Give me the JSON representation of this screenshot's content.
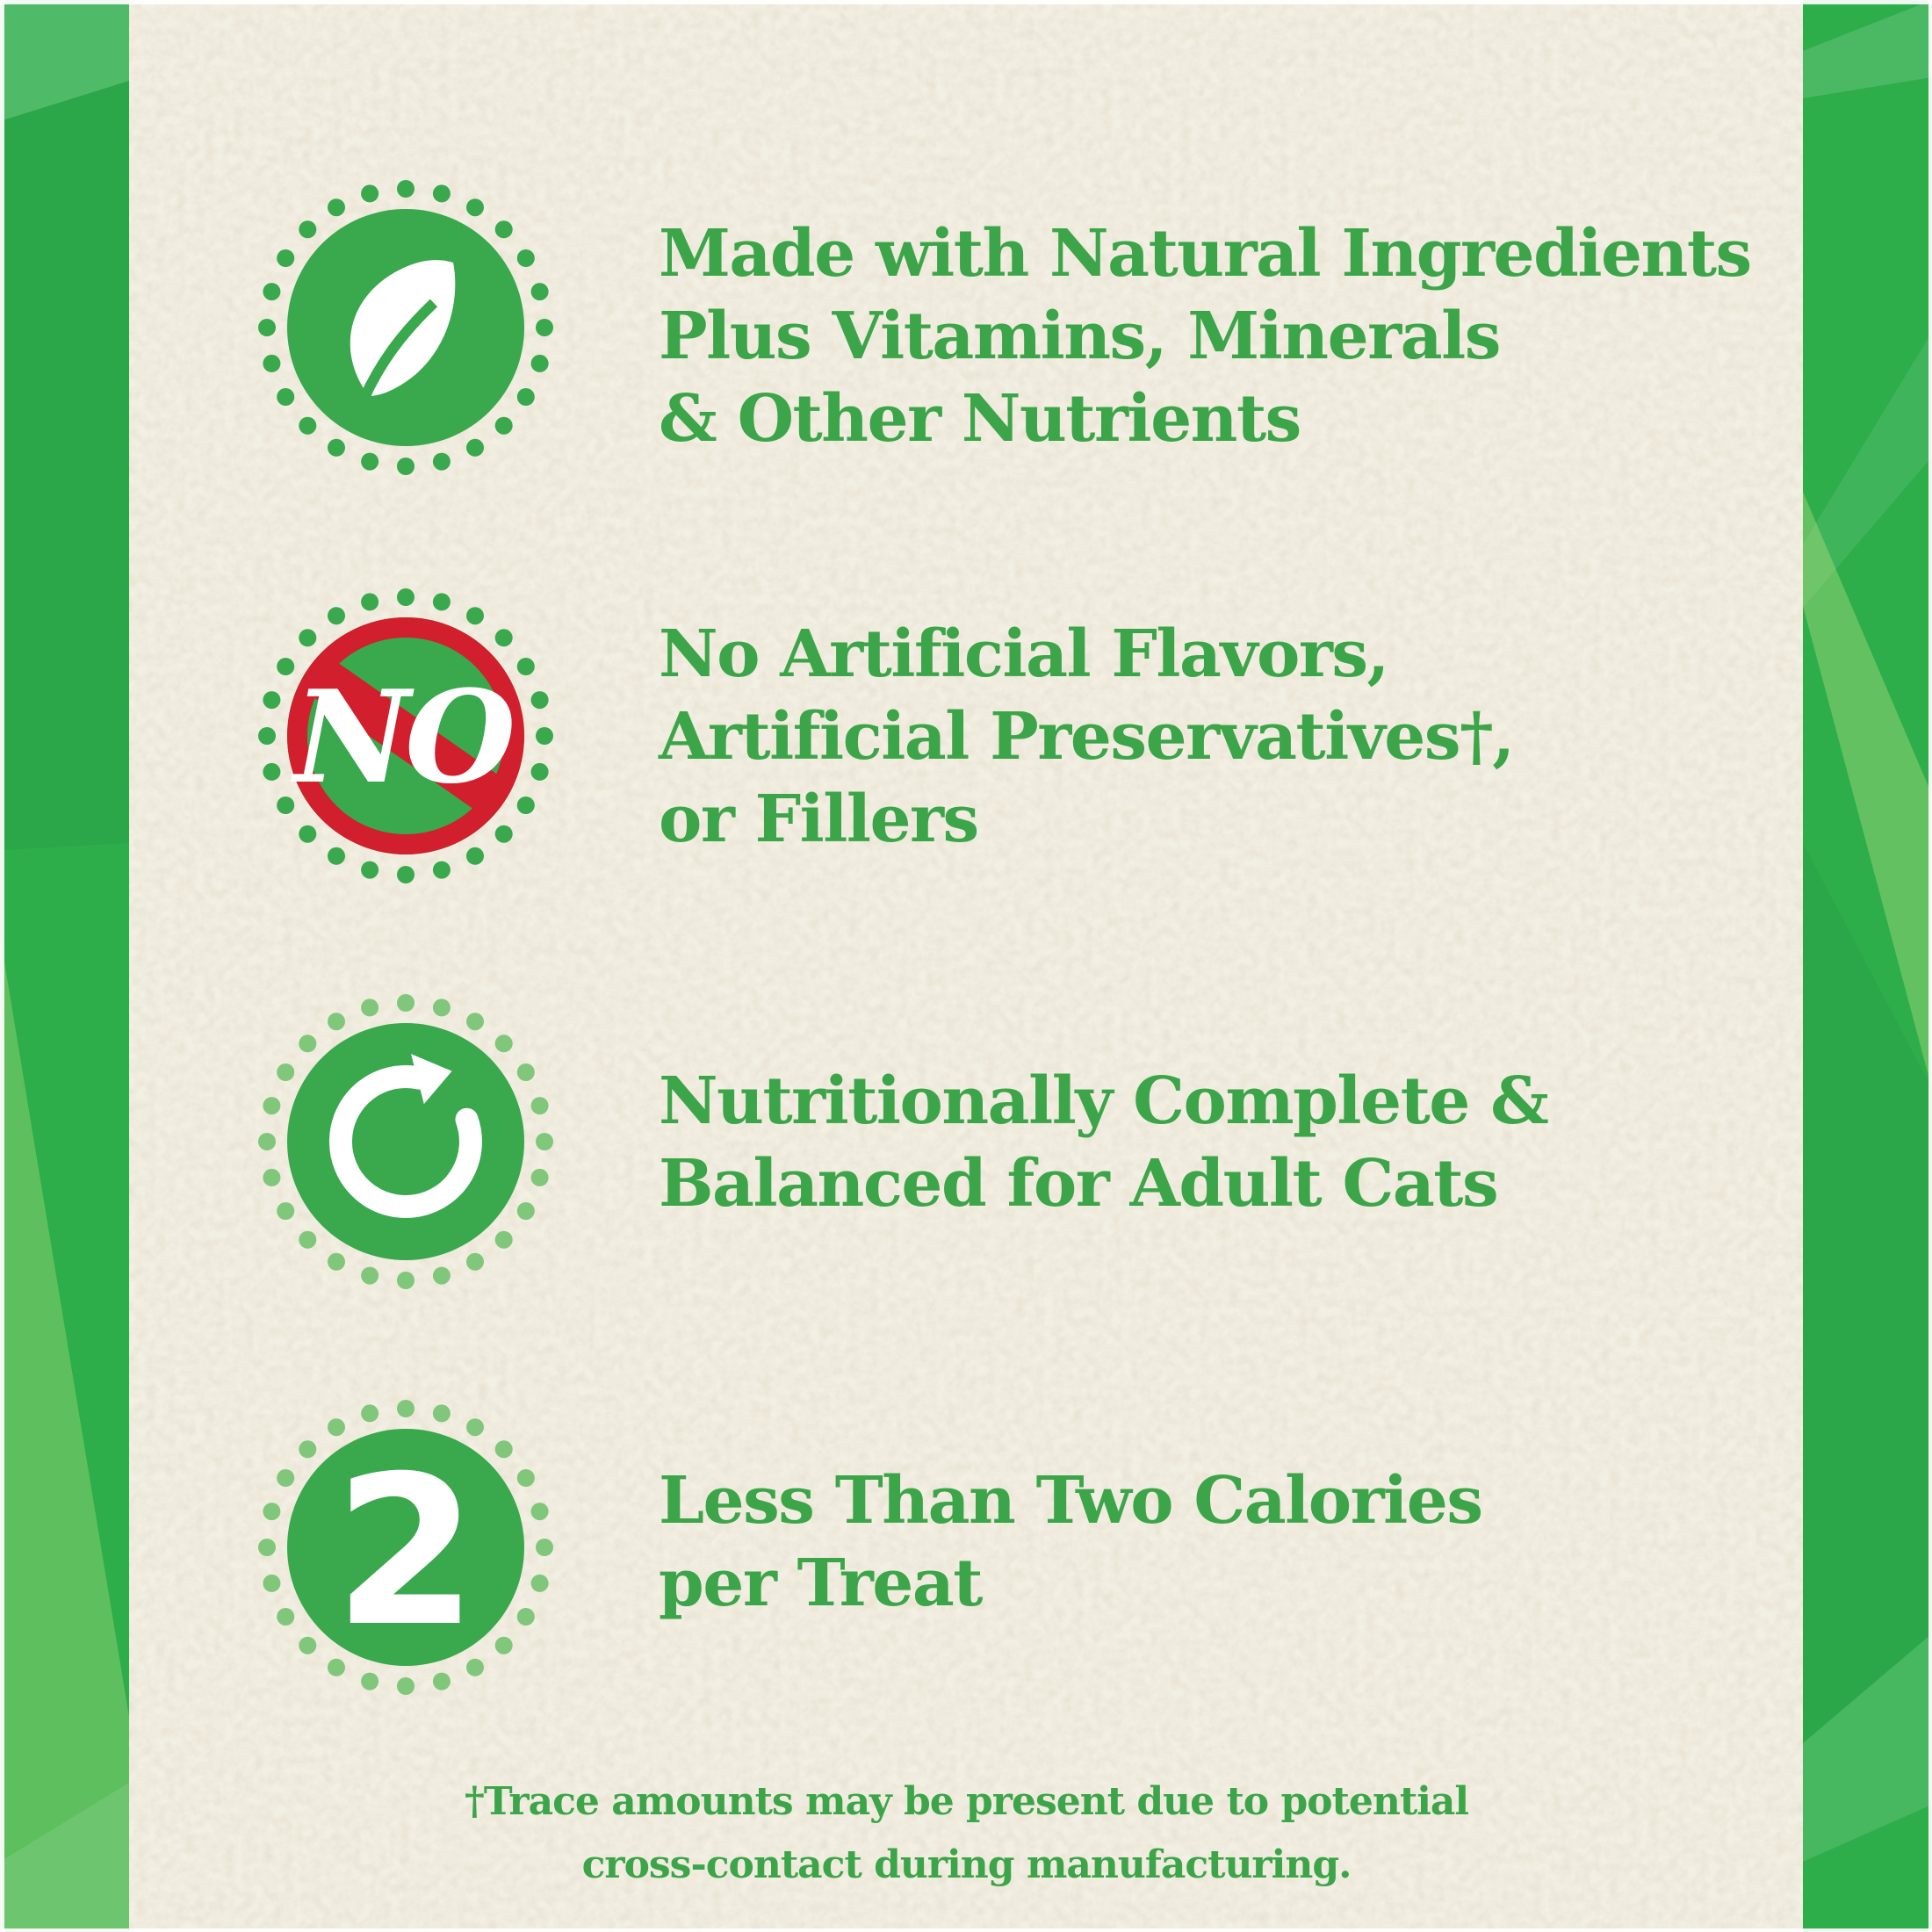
{
  "theme": {
    "paper_color": "#f2efe3",
    "strip_green": "#2ead4b",
    "text_green": "#3da549",
    "icon_green": "#3aa84d",
    "dot_light_green": "#80c77b",
    "ban_red": "#d11f2d",
    "glyph_white": "#ffffff"
  },
  "benefits": [
    {
      "icon": "leaf-icon",
      "lines": [
        "Made with Natural Ingredients",
        "Plus Vitamins, Minerals",
        "& Other Nutrients"
      ]
    },
    {
      "icon": "no-ban-icon",
      "badge_text": "NO",
      "lines": [
        "No Artificial Flavors,",
        "Artificial Preservatives†,",
        "or Fillers"
      ]
    },
    {
      "icon": "cycle-arrow-icon",
      "lines": [
        "Nutritionally Complete &",
        "Balanced for Adult Cats"
      ]
    },
    {
      "icon": "number-two-icon",
      "badge_text": "2",
      "lines": [
        "Less Than Two Calories",
        "per Treat"
      ]
    }
  ],
  "footnote": {
    "lines": [
      "†Trace amounts may be present due to potential",
      "cross-contact during manufacturing."
    ]
  }
}
